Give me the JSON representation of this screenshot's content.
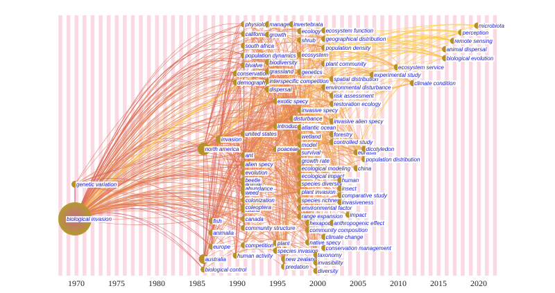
{
  "axis": {
    "ticks": [
      "1970",
      "1975",
      "1980",
      "1985",
      "1990",
      "1995",
      "2000",
      "2005",
      "2010",
      "2015",
      "2020"
    ],
    "range": [
      1969,
      2022
    ]
  },
  "colors": {
    "stripe": "#fbd9e3",
    "node": "#b8902a",
    "label": "#1a1ad6",
    "link_old": "#c2185b",
    "link_new": "#ffd54f"
  },
  "nodes": [
    {
      "label": "biological invasion",
      "year": 1970
    },
    {
      "label": "genetic variation",
      "year": 1970
    },
    {
      "label": "north america",
      "year": 1986
    },
    {
      "label": "australia",
      "year": 1986
    },
    {
      "label": "biological control",
      "year": 1986
    },
    {
      "label": "europe",
      "year": 1987
    },
    {
      "label": "animalia",
      "year": 1987
    },
    {
      "label": "fish",
      "year": 1987
    },
    {
      "label": "human activity",
      "year": 1990
    },
    {
      "label": "invasion",
      "year": 1988
    },
    {
      "label": "conservation",
      "year": 1990
    },
    {
      "label": "demography",
      "year": 1990
    },
    {
      "label": "physiology",
      "year": 1991
    },
    {
      "label": "california",
      "year": 1991
    },
    {
      "label": "south africa",
      "year": 1991
    },
    {
      "label": "population dynamics",
      "year": 1991
    },
    {
      "label": "bivalve",
      "year": 1991
    },
    {
      "label": "united states",
      "year": 1991
    },
    {
      "label": "ant",
      "year": 1991
    },
    {
      "label": "alien specy",
      "year": 1991
    },
    {
      "label": "evolution",
      "year": 1991
    },
    {
      "label": "animal",
      "year": 1991
    },
    {
      "label": "beetle",
      "year": 1991
    },
    {
      "label": "abundance",
      "year": 1991
    },
    {
      "label": "weed",
      "year": 1991
    },
    {
      "label": "colonization",
      "year": 1991
    },
    {
      "label": "island",
      "year": 1991
    },
    {
      "label": "coleoptera",
      "year": 1991
    },
    {
      "label": "canada",
      "year": 1991
    },
    {
      "label": "community structure",
      "year": 1991
    },
    {
      "label": "competition",
      "year": 1991
    },
    {
      "label": "management",
      "year": 1994
    },
    {
      "label": "growth",
      "year": 1994
    },
    {
      "label": "biodiversity",
      "year": 1994
    },
    {
      "label": "grassland",
      "year": 1994
    },
    {
      "label": "interspecific competition",
      "year": 1994
    },
    {
      "label": "dispersal",
      "year": 1994
    },
    {
      "label": "exotic specy",
      "year": 1995
    },
    {
      "label": "introduced specy",
      "year": 1995
    },
    {
      "label": "poaceae",
      "year": 1995
    },
    {
      "label": "plant",
      "year": 1995
    },
    {
      "label": "species invasion",
      "year": 1995
    },
    {
      "label": "new zealand",
      "year": 1996
    },
    {
      "label": "predation",
      "year": 1996
    },
    {
      "label": "disturbance",
      "year": 1997
    },
    {
      "label": "invertebrata",
      "year": 1997
    },
    {
      "label": "ecology",
      "year": 1998
    },
    {
      "label": "shrub",
      "year": 1998
    },
    {
      "label": "ecosystem",
      "year": 1998
    },
    {
      "label": "genetics",
      "year": 1998
    },
    {
      "label": "invasive specy",
      "year": 1998
    },
    {
      "label": "atlantic ocean",
      "year": 1998
    },
    {
      "label": "wetland",
      "year": 1998
    },
    {
      "label": "model",
      "year": 1998
    },
    {
      "label": "survival",
      "year": 1998
    },
    {
      "label": "growth rate",
      "year": 1998
    },
    {
      "label": "ecological modeling",
      "year": 1998
    },
    {
      "label": "ecological impact",
      "year": 1998
    },
    {
      "label": "species diversity",
      "year": 1998
    },
    {
      "label": "plant invasion",
      "year": 1998
    },
    {
      "label": "species richness",
      "year": 1998
    },
    {
      "label": "environmental factor",
      "year": 1998
    },
    {
      "label": "range expansion",
      "year": 1998
    },
    {
      "label": "hexapoda",
      "year": 1999
    },
    {
      "label": "community composition",
      "year": 1999
    },
    {
      "label": "native specy",
      "year": 1999
    },
    {
      "label": "taxonomy",
      "year": 2000
    },
    {
      "label": "invasibility",
      "year": 2000
    },
    {
      "label": "diversity",
      "year": 2000
    },
    {
      "label": "ecosystem function",
      "year": 2001
    },
    {
      "label": "geographical distribution",
      "year": 2001
    },
    {
      "label": "population density",
      "year": 2001
    },
    {
      "label": "plant community",
      "year": 2001
    },
    {
      "label": "spatial distribution",
      "year": 2002
    },
    {
      "label": "environmental disturbance",
      "year": 2001
    },
    {
      "label": "risk assessment",
      "year": 2002
    },
    {
      "label": "restoration ecology",
      "year": 2002
    },
    {
      "label": "invasive alien specy",
      "year": 2002
    },
    {
      "label": "forestry",
      "year": 2002
    },
    {
      "label": "controlled study",
      "year": 2002
    },
    {
      "label": "human",
      "year": 2003
    },
    {
      "label": "insect",
      "year": 2003
    },
    {
      "label": "comparative study",
      "year": 2003
    },
    {
      "label": "invasiveness",
      "year": 2003
    },
    {
      "label": "impact",
      "year": 2004
    },
    {
      "label": "anthropogenic effect",
      "year": 2002
    },
    {
      "label": "climate change",
      "year": 2001
    },
    {
      "label": "conservation management",
      "year": 2001
    },
    {
      "label": "eurasia",
      "year": 2005
    },
    {
      "label": "china",
      "year": 2005
    },
    {
      "label": "dicotyledon",
      "year": 2006
    },
    {
      "label": "population distribution",
      "year": 2006
    },
    {
      "label": "experimental study",
      "year": 2007
    },
    {
      "label": "ecosystem service",
      "year": 2010
    },
    {
      "label": "climate condition",
      "year": 2012
    },
    {
      "label": "biological evolution",
      "year": 2016
    },
    {
      "label": "animal dispersal",
      "year": 2016
    },
    {
      "label": "remote sensing",
      "year": 2017
    },
    {
      "label": "perception",
      "year": 2018
    },
    {
      "label": "microbiota",
      "year": 2020
    }
  ]
}
